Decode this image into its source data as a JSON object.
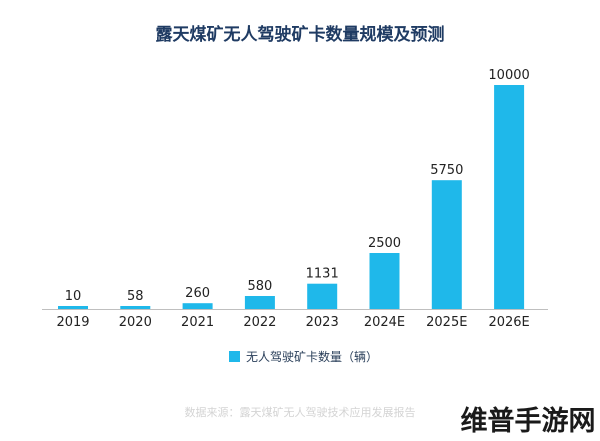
{
  "colors": {
    "bar": "#1fb8ea",
    "axis": "#bfbfbf",
    "title": "#1f3b63"
  },
  "chart_data": {
    "type": "bar",
    "title": "露天煤矿无人驾驶矿卡数量规模及预测",
    "categories": [
      "2019",
      "2020",
      "2021",
      "2022",
      "2023",
      "2024E",
      "2025E",
      "2026E"
    ],
    "series": [
      {
        "name": "无人驾驶矿卡数量（辆）",
        "values": [
          10,
          58,
          260,
          580,
          1131,
          2500,
          5750,
          10000
        ]
      }
    ],
    "value_labels": [
      "10",
      "58",
      "260",
      "580",
      "1131",
      "2500",
      "5750",
      "10000"
    ],
    "ylim": [
      0,
      10000
    ],
    "grid": false,
    "legend": "bottom-center",
    "xlabel": "",
    "ylabel": ""
  },
  "source_note": "数据来源：露天煤矿无人驾驶技术应用发展报告",
  "watermark": "维普手游网"
}
